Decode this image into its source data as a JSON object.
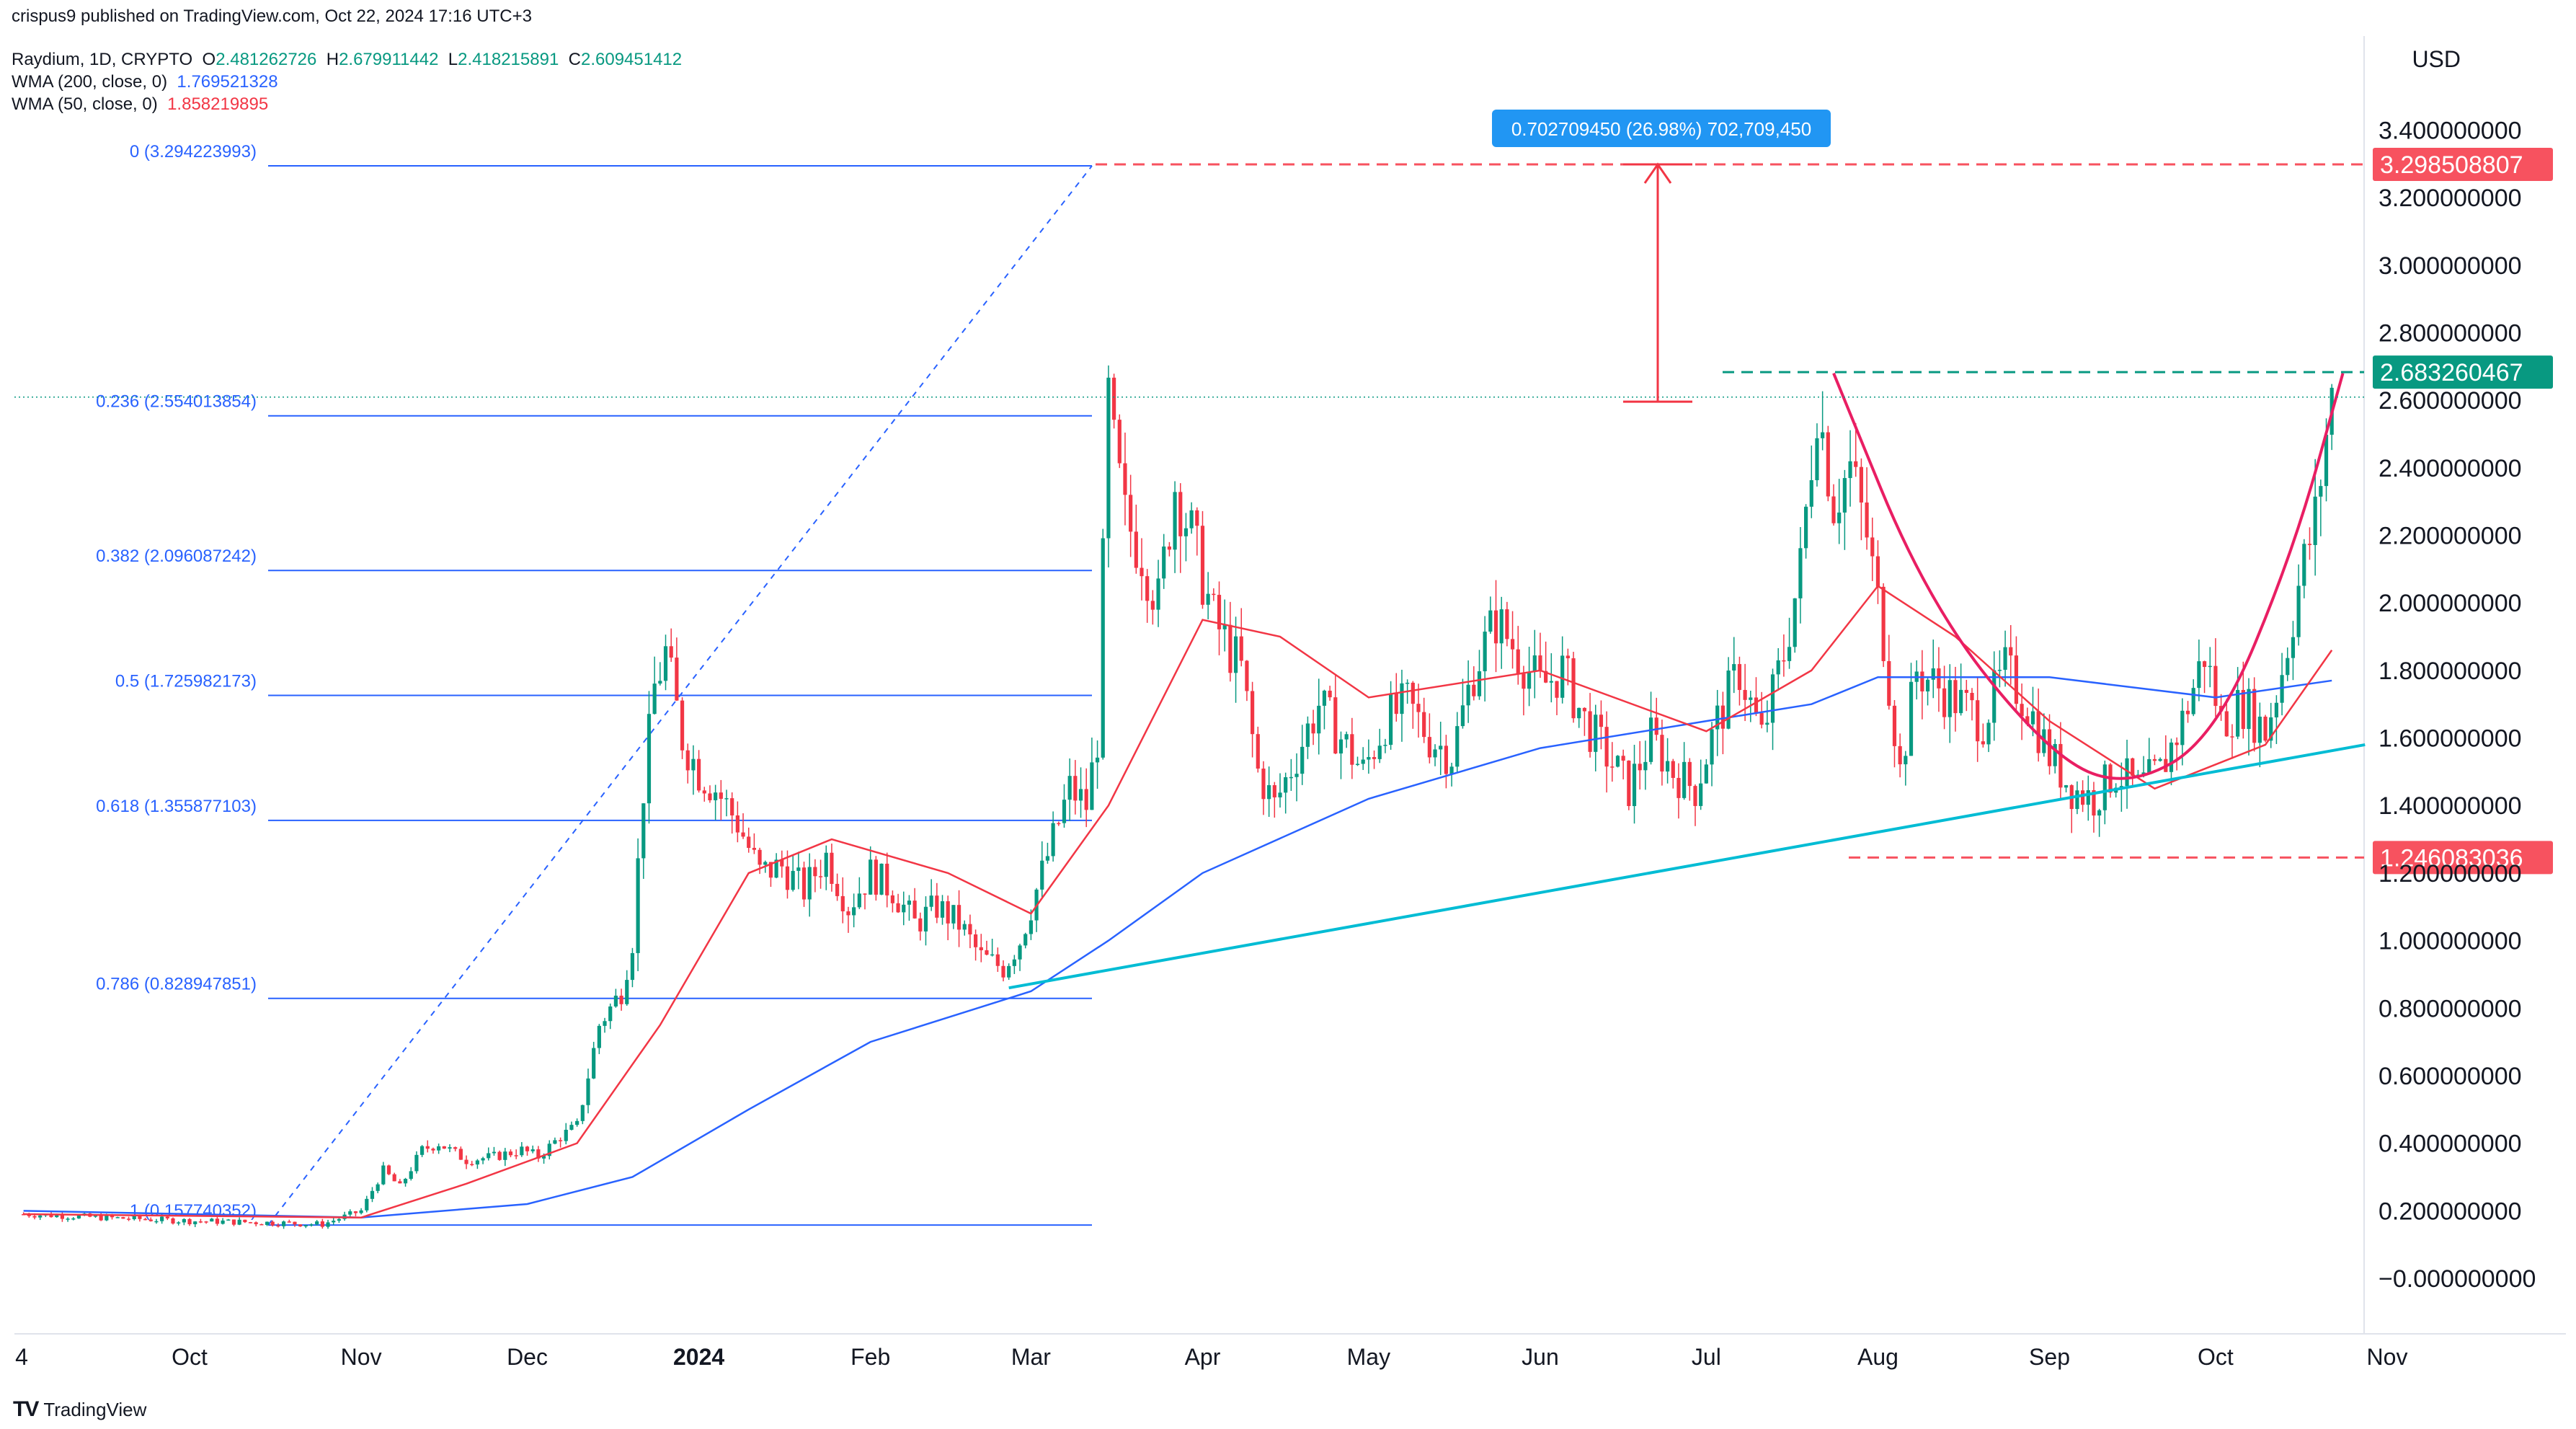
{
  "publisher": "crispus9 published on TradingView.com, Oct 22, 2024 17:16 UTC+3",
  "symbol": {
    "title": "Raydium, 1D, CRYPTO",
    "o_label": "O",
    "o_value": "2.481262726",
    "h_label": "H",
    "h_value": "2.679911442",
    "l_label": "L",
    "l_value": "2.418215891",
    "c_label": "C",
    "c_value": "2.609451412"
  },
  "indicators": [
    {
      "label": "WMA (200, close, 0)",
      "value": "1.769521328",
      "color": "#2962ff"
    },
    {
      "label": "WMA (50, close, 0)",
      "value": "1.858219895",
      "color": "#f23645"
    }
  ],
  "currency": "USD",
  "footer": {
    "logo": "TV",
    "brand": "TradingView"
  },
  "measure_label": "0.702709450 (26.98%) 702,709,450",
  "chart_data": {
    "type": "candlestick",
    "title": "Raydium, 1D, CRYPTO",
    "x_ticks": [
      "4",
      "Oct",
      "Nov",
      "Dec",
      "2024",
      "Feb",
      "Mar",
      "Apr",
      "May",
      "Jun",
      "Jul",
      "Aug",
      "Sep",
      "Oct",
      "Nov"
    ],
    "y_ticks": [
      "3.400000000",
      "3.200000000",
      "3.000000000",
      "2.800000000",
      "2.600000000",
      "2.400000000",
      "2.200000000",
      "2.000000000",
      "1.800000000",
      "1.600000000",
      "1.400000000",
      "1.200000000",
      "1.000000000",
      "0.800000000",
      "0.600000000",
      "0.400000000",
      "0.200000000",
      "−0.000000000"
    ],
    "ylim": [
      -0.07,
      3.6
    ],
    "fibonacci": [
      {
        "label": "0 (3.294223993)",
        "value": 3.294223993
      },
      {
        "label": "0.236 (2.554013854)",
        "value": 2.554013854
      },
      {
        "label": "0.382 (2.096087242)",
        "value": 2.096087242
      },
      {
        "label": "0.5 (1.725982173)",
        "value": 1.725982173
      },
      {
        "label": "0.618 (1.355877103)",
        "value": 1.355877103
      },
      {
        "label": "0.786 (0.828947851)",
        "value": 0.828947851
      },
      {
        "label": "1 (0.157740352)",
        "value": 0.157740352
      }
    ],
    "price_badges": [
      {
        "label": "3.298508807",
        "value": 3.298508807,
        "color": "#f7525f"
      },
      {
        "label": "2.683260467",
        "value": 2.683260467,
        "color": "#089981"
      },
      {
        "label": "1.246083036",
        "value": 1.246083036,
        "color": "#f7525f"
      }
    ],
    "close_series": [
      {
        "t": "2023-09-01",
        "v": 0.19
      },
      {
        "t": "2023-09-15",
        "v": 0.18
      },
      {
        "t": "2023-10-01",
        "v": 0.17
      },
      {
        "t": "2023-10-15",
        "v": 0.165
      },
      {
        "t": "2023-10-25",
        "v": 0.16
      },
      {
        "t": "2023-11-01",
        "v": 0.2
      },
      {
        "t": "2023-11-05",
        "v": 0.32
      },
      {
        "t": "2023-11-08",
        "v": 0.27
      },
      {
        "t": "2023-11-12",
        "v": 0.38
      },
      {
        "t": "2023-11-15",
        "v": 0.4
      },
      {
        "t": "2023-11-20",
        "v": 0.35
      },
      {
        "t": "2023-11-25",
        "v": 0.36
      },
      {
        "t": "2023-11-30",
        "v": 0.38
      },
      {
        "t": "2023-12-03",
        "v": 0.36
      },
      {
        "t": "2023-12-07",
        "v": 0.42
      },
      {
        "t": "2023-12-10",
        "v": 0.45
      },
      {
        "t": "2023-12-12",
        "v": 0.6
      },
      {
        "t": "2023-12-14",
        "v": 0.75
      },
      {
        "t": "2023-12-18",
        "v": 0.85
      },
      {
        "t": "2023-12-20",
        "v": 1.0
      },
      {
        "t": "2023-12-22",
        "v": 1.45
      },
      {
        "t": "2023-12-24",
        "v": 1.75
      },
      {
        "t": "2023-12-26",
        "v": 1.85
      },
      {
        "t": "2023-12-29",
        "v": 1.6
      },
      {
        "t": "2024-01-01",
        "v": 1.5
      },
      {
        "t": "2024-01-04",
        "v": 1.45
      },
      {
        "t": "2024-01-08",
        "v": 1.35
      },
      {
        "t": "2024-01-12",
        "v": 1.2
      },
      {
        "t": "2024-01-16",
        "v": 1.22
      },
      {
        "t": "2024-01-20",
        "v": 1.15
      },
      {
        "t": "2024-01-24",
        "v": 1.25
      },
      {
        "t": "2024-01-28",
        "v": 1.1
      },
      {
        "t": "2024-02-01",
        "v": 1.2
      },
      {
        "t": "2024-02-05",
        "v": 1.15
      },
      {
        "t": "2024-02-09",
        "v": 1.05
      },
      {
        "t": "2024-02-13",
        "v": 1.1
      },
      {
        "t": "2024-02-17",
        "v": 1.05
      },
      {
        "t": "2024-02-21",
        "v": 0.95
      },
      {
        "t": "2024-02-25",
        "v": 0.92
      },
      {
        "t": "2024-02-28",
        "v": 1.0
      },
      {
        "t": "2024-03-02",
        "v": 1.15
      },
      {
        "t": "2024-03-05",
        "v": 1.3
      },
      {
        "t": "2024-03-08",
        "v": 1.45
      },
      {
        "t": "2024-03-11",
        "v": 1.4
      },
      {
        "t": "2024-03-13",
        "v": 1.6
      },
      {
        "t": "2024-03-15",
        "v": 2.6
      },
      {
        "t": "2024-03-16",
        "v": 2.45
      },
      {
        "t": "2024-03-18",
        "v": 2.25
      },
      {
        "t": "2024-03-21",
        "v": 2.15
      },
      {
        "t": "2024-03-24",
        "v": 2.0
      },
      {
        "t": "2024-03-27",
        "v": 2.35
      },
      {
        "t": "2024-03-30",
        "v": 2.2
      },
      {
        "t": "2024-04-03",
        "v": 1.95
      },
      {
        "t": "2024-04-08",
        "v": 1.8
      },
      {
        "t": "2024-04-11",
        "v": 1.5
      },
      {
        "t": "2024-04-14",
        "v": 1.4
      },
      {
        "t": "2024-04-18",
        "v": 1.55
      },
      {
        "t": "2024-04-22",
        "v": 1.7
      },
      {
        "t": "2024-04-26",
        "v": 1.6
      },
      {
        "t": "2024-04-30",
        "v": 1.5
      },
      {
        "t": "2024-05-04",
        "v": 1.65
      },
      {
        "t": "2024-05-08",
        "v": 1.7
      },
      {
        "t": "2024-05-12",
        "v": 1.6
      },
      {
        "t": "2024-05-16",
        "v": 1.55
      },
      {
        "t": "2024-05-20",
        "v": 1.8
      },
      {
        "t": "2024-05-24",
        "v": 1.95
      },
      {
        "t": "2024-05-28",
        "v": 1.85
      },
      {
        "t": "2024-06-01",
        "v": 1.75
      },
      {
        "t": "2024-06-05",
        "v": 1.8
      },
      {
        "t": "2024-06-09",
        "v": 1.65
      },
      {
        "t": "2024-06-13",
        "v": 1.55
      },
      {
        "t": "2024-06-17",
        "v": 1.45
      },
      {
        "t": "2024-06-21",
        "v": 1.6
      },
      {
        "t": "2024-06-25",
        "v": 1.5
      },
      {
        "t": "2024-06-29",
        "v": 1.45
      },
      {
        "t": "2024-07-03",
        "v": 1.65
      },
      {
        "t": "2024-07-07",
        "v": 1.8
      },
      {
        "t": "2024-07-11",
        "v": 1.6
      },
      {
        "t": "2024-07-15",
        "v": 1.85
      },
      {
        "t": "2024-07-18",
        "v": 2.1
      },
      {
        "t": "2024-07-21",
        "v": 2.6
      },
      {
        "t": "2024-07-24",
        "v": 2.3
      },
      {
        "t": "2024-07-27",
        "v": 2.4
      },
      {
        "t": "2024-07-30",
        "v": 2.2
      },
      {
        "t": "2024-08-02",
        "v": 1.9
      },
      {
        "t": "2024-08-05",
        "v": 1.5
      },
      {
        "t": "2024-08-08",
        "v": 1.8
      },
      {
        "t": "2024-08-12",
        "v": 1.75
      },
      {
        "t": "2024-08-16",
        "v": 1.7
      },
      {
        "t": "2024-08-20",
        "v": 1.65
      },
      {
        "t": "2024-08-24",
        "v": 1.8
      },
      {
        "t": "2024-08-28",
        "v": 1.7
      },
      {
        "t": "2024-09-01",
        "v": 1.55
      },
      {
        "t": "2024-09-05",
        "v": 1.45
      },
      {
        "t": "2024-09-09",
        "v": 1.42
      },
      {
        "t": "2024-09-13",
        "v": 1.5
      },
      {
        "t": "2024-09-17",
        "v": 1.45
      },
      {
        "t": "2024-09-21",
        "v": 1.5
      },
      {
        "t": "2024-09-25",
        "v": 1.65
      },
      {
        "t": "2024-09-29",
        "v": 1.85
      },
      {
        "t": "2024-10-02",
        "v": 1.65
      },
      {
        "t": "2024-10-06",
        "v": 1.7
      },
      {
        "t": "2024-10-10",
        "v": 1.62
      },
      {
        "t": "2024-10-13",
        "v": 1.8
      },
      {
        "t": "2024-10-16",
        "v": 2.05
      },
      {
        "t": "2024-10-19",
        "v": 2.25
      },
      {
        "t": "2024-10-21",
        "v": 2.5
      },
      {
        "t": "2024-10-22",
        "v": 2.61
      }
    ],
    "wma200_series": [
      {
        "t": "2023-09-01",
        "v": 0.2
      },
      {
        "t": "2023-11-01",
        "v": 0.18
      },
      {
        "t": "2023-12-01",
        "v": 0.22
      },
      {
        "t": "2023-12-20",
        "v": 0.3
      },
      {
        "t": "2024-01-10",
        "v": 0.5
      },
      {
        "t": "2024-02-01",
        "v": 0.7
      },
      {
        "t": "2024-03-01",
        "v": 0.85
      },
      {
        "t": "2024-03-15",
        "v": 1.0
      },
      {
        "t": "2024-04-01",
        "v": 1.2
      },
      {
        "t": "2024-05-01",
        "v": 1.42
      },
      {
        "t": "2024-06-01",
        "v": 1.57
      },
      {
        "t": "2024-07-01",
        "v": 1.65
      },
      {
        "t": "2024-07-20",
        "v": 1.7
      },
      {
        "t": "2024-08-01",
        "v": 1.78
      },
      {
        "t": "2024-09-01",
        "v": 1.78
      },
      {
        "t": "2024-10-01",
        "v": 1.72
      },
      {
        "t": "2024-10-22",
        "v": 1.77
      }
    ],
    "wma50_series": [
      {
        "t": "2023-09-01",
        "v": 0.19
      },
      {
        "t": "2023-11-01",
        "v": 0.18
      },
      {
        "t": "2023-11-20",
        "v": 0.28
      },
      {
        "t": "2023-12-10",
        "v": 0.4
      },
      {
        "t": "2023-12-25",
        "v": 0.75
      },
      {
        "t": "2024-01-10",
        "v": 1.2
      },
      {
        "t": "2024-01-25",
        "v": 1.3
      },
      {
        "t": "2024-02-15",
        "v": 1.2
      },
      {
        "t": "2024-03-01",
        "v": 1.08
      },
      {
        "t": "2024-03-15",
        "v": 1.4
      },
      {
        "t": "2024-04-01",
        "v": 1.95
      },
      {
        "t": "2024-04-15",
        "v": 1.9
      },
      {
        "t": "2024-05-01",
        "v": 1.72
      },
      {
        "t": "2024-06-01",
        "v": 1.8
      },
      {
        "t": "2024-07-01",
        "v": 1.62
      },
      {
        "t": "2024-07-20",
        "v": 1.8
      },
      {
        "t": "2024-08-01",
        "v": 2.05
      },
      {
        "t": "2024-08-15",
        "v": 1.9
      },
      {
        "t": "2024-09-01",
        "v": 1.65
      },
      {
        "t": "2024-09-20",
        "v": 1.45
      },
      {
        "t": "2024-10-10",
        "v": 1.58
      },
      {
        "t": "2024-10-22",
        "v": 1.86
      }
    ],
    "trendline": [
      {
        "t": "2024-02-26",
        "v": 0.86
      },
      {
        "t": "2024-10-28",
        "v": 1.58
      }
    ],
    "cup_curve": [
      {
        "t": "2024-07-24",
        "v": 2.68
      },
      {
        "t": "2024-08-10",
        "v": 2.0
      },
      {
        "t": "2024-09-01",
        "v": 1.55
      },
      {
        "t": "2024-09-15",
        "v": 1.45
      },
      {
        "t": "2024-10-01",
        "v": 1.6
      },
      {
        "t": "2024-10-15",
        "v": 2.15
      },
      {
        "t": "2024-10-24",
        "v": 2.68
      }
    ]
  }
}
